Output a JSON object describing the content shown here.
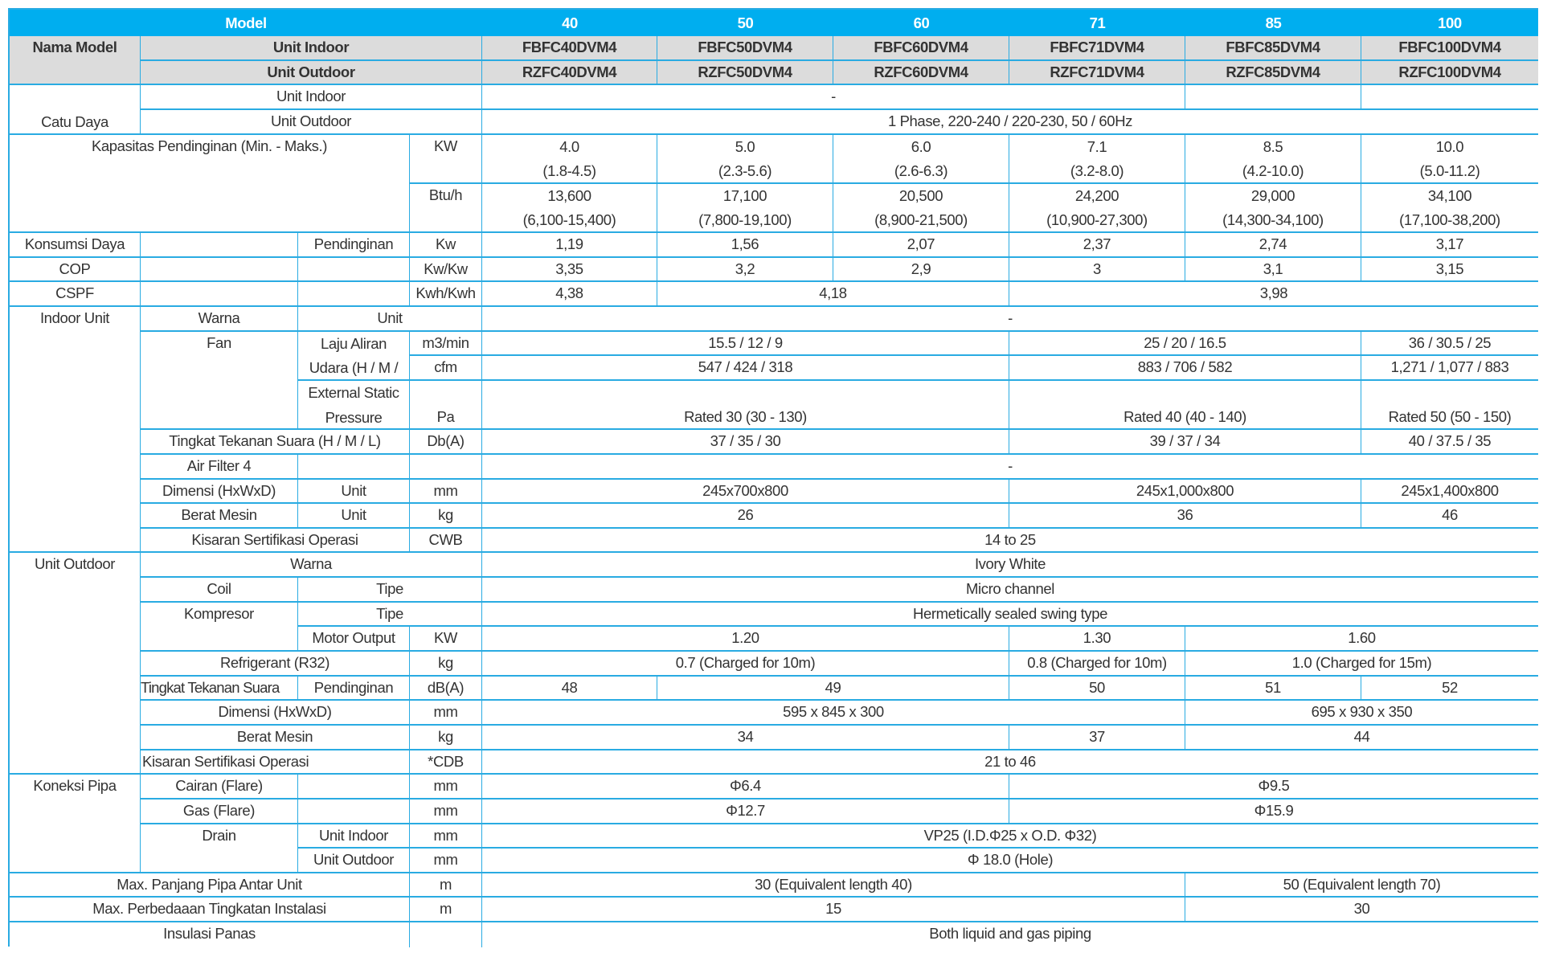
{
  "header": {
    "model_label": "Model",
    "models": [
      "40",
      "50",
      "60",
      "71",
      "85",
      "100"
    ]
  },
  "model_names": {
    "label": "Nama Model",
    "indoor_label": "Unit Indoor",
    "outdoor_label": "Unit Outdoor",
    "indoor": [
      "FBFC40DVM4",
      "FBFC50DVM4",
      "FBFC60DVM4",
      "FBFC71DVM4",
      "FBFC85DVM4",
      "FBFC100DVM4"
    ],
    "outdoor": [
      "RZFC40DVM4",
      "RZFC50DVM4",
      "RZFC60DVM4",
      "RZFC71DVM4",
      "RZFC85DVM4",
      "RZFC100DVM4"
    ]
  },
  "power_supply": {
    "label": "Catu Daya",
    "indoor_label": "Unit Indoor",
    "outdoor_label": "Unit Outdoor",
    "indoor_value_40_71": "-",
    "indoor_value_85": "",
    "indoor_value_100": "",
    "outdoor_value": "1 Phase, 220-240 / 220-230, 50 / 60Hz"
  },
  "cooling_capacity": {
    "label": "Kapasitas Pendinginan (Min. - Maks.)",
    "kw_unit": "KW",
    "btu_unit": "Btu/h",
    "kw": [
      {
        "rated": "4.0",
        "range": "(1.8-4.5)"
      },
      {
        "rated": "5.0",
        "range": "(2.3-5.6)"
      },
      {
        "rated": "6.0",
        "range": "(2.6-6.3)"
      },
      {
        "rated": "7.1",
        "range": "(3.2-8.0)"
      },
      {
        "rated": "8.5",
        "range": "(4.2-10.0)"
      },
      {
        "rated": "10.0",
        "range": "(5.0-11.2)"
      }
    ],
    "btu": [
      {
        "rated": "13,600",
        "range": "(6,100-15,400)"
      },
      {
        "rated": "17,100",
        "range": "(7,800-19,100)"
      },
      {
        "rated": "20,500",
        "range": "(8,900-21,500)"
      },
      {
        "rated": "24,200",
        "range": "(10,900-27,300)"
      },
      {
        "rated": "29,000",
        "range": "(14,300-34,100)"
      },
      {
        "rated": "34,100",
        "range": "(17,100-38,200)"
      }
    ]
  },
  "power_consumption": {
    "label": "Konsumsi Daya",
    "sub_label": "Pendinginan",
    "unit": "Kw",
    "values": [
      "1,19",
      "1,56",
      "2,07",
      "2,37",
      "2,74",
      "3,17"
    ]
  },
  "cop": {
    "label": "COP",
    "unit": "Kw/Kw",
    "values": [
      "3,35",
      "3,2",
      "2,9",
      "3",
      "3,1",
      "3,15"
    ]
  },
  "cspf": {
    "label": "CSPF",
    "unit": "Kwh/Kwh",
    "value_40": "4,38",
    "value_50_60": "4,18",
    "value_71_100": "3,98"
  },
  "indoor_unit": {
    "label": "Indoor Unit",
    "color": {
      "label": "Warna",
      "unit_label": "Unit",
      "value": "-"
    },
    "fan": {
      "label": "Fan",
      "airflow_label_1": "Laju Aliran",
      "airflow_label_2": "Udara (H / M /",
      "unit_m3": "m3/min",
      "unit_cfm": "cfm",
      "m3": {
        "g1": "15.5 / 12 / 9",
        "g2": "25 / 20 / 16.5",
        "g3": "36 / 30.5 / 25"
      },
      "cfm": {
        "g1": "547 / 424 / 318",
        "g2": "883 / 706 / 582",
        "g3": "1,271 / 1,077 / 883"
      },
      "esp_label_1": "External Static",
      "esp_label_2": "Pressure",
      "esp_unit": "Pa",
      "esp": {
        "g1": "Rated 30 (30 - 130)",
        "g2": "Rated 40 (40 - 140)",
        "g3": "Rated 50 (50 - 150)"
      }
    },
    "sound": {
      "label": "Tingkat Tekanan Suara (H / M / L)",
      "unit": "Db(A)",
      "g1": "37 / 35 / 30",
      "g2": "39 / 37 / 34",
      "g3": "40 / 37.5 / 35"
    },
    "air_filter": {
      "label": "Air Filter 4",
      "value": "-"
    },
    "dimension": {
      "label": "Dimensi (HxWxD)",
      "sub_label": "Unit",
      "unit": "mm",
      "g1": "245x700x800",
      "g2": "245x1,000x800",
      "g3": "245x1,400x800"
    },
    "weight": {
      "label": "Berat Mesin",
      "sub_label": "Unit",
      "unit": "kg",
      "g1": "26",
      "g2": "36",
      "g3": "46"
    },
    "operation_range": {
      "label": "Kisaran Sertifikasi Operasi",
      "unit": "CWB",
      "value": "14 to 25"
    }
  },
  "outdoor_unit": {
    "label": "Unit Outdoor",
    "color": {
      "label": "Warna",
      "value": "Ivory White"
    },
    "coil": {
      "label": "Coil",
      "sub_label": "Tipe",
      "value": "Micro channel"
    },
    "compressor": {
      "label": "Kompresor",
      "type_label": "Tipe",
      "type_value": "Hermetically sealed swing type",
      "motor_label": "Motor Output",
      "motor_unit": "KW",
      "motor_40_60": "1.20",
      "motor_71": "1.30",
      "motor_85_100": "1.60"
    },
    "refrigerant": {
      "label": "Refrigerant (R32)",
      "unit": "kg",
      "v_40_60": "0.7 (Charged for 10m)",
      "v_71": "0.8 (Charged for 10m)",
      "v_85_100": "1.0 (Charged for 15m)"
    },
    "sound": {
      "label": "Tingkat Tekanan Suara",
      "sub_label": "Pendinginan",
      "unit": "dB(A)",
      "v_40": "48",
      "v_50_60": "49",
      "v_71": "50",
      "v_85": "51",
      "v_100": "52"
    },
    "dimension": {
      "label": "Dimensi (HxWxD)",
      "unit": "mm",
      "v_40_71": "595 x 845 x 300",
      "v_85_100": "695 x 930 x 350"
    },
    "weight": {
      "label": "Berat Mesin",
      "unit": "kg",
      "v_40_60": "34",
      "v_71": "37",
      "v_85_100": "44"
    },
    "operation_range": {
      "label": "Kisaran Sertifikasi Operasi",
      "unit": "*CDB",
      "value": "21 to 46"
    }
  },
  "piping": {
    "label": "Koneksi Pipa",
    "liquid": {
      "label": "Cairan (Flare)",
      "unit": "mm",
      "v_40_60": "Φ6.4",
      "v_71_100": "Φ9.5"
    },
    "gas": {
      "label": "Gas (Flare)",
      "unit": "mm",
      "v_40_60": "Φ12.7",
      "v_71_100": "Φ15.9"
    },
    "drain": {
      "label": "Drain",
      "indoor_label": "Unit Indoor",
      "outdoor_label": "Unit Outdoor",
      "unit": "mm",
      "indoor_value": "VP25 (I.D.Φ25 x O.D. Φ32)",
      "outdoor_value": "Φ 18.0 (Hole)"
    }
  },
  "max_pipe_length": {
    "label": "Max. Panjang Pipa Antar Unit",
    "unit": "m",
    "v_40_71": "30 (Equivalent length 40)",
    "v_85_100": "50 (Equivalent length 70)"
  },
  "max_height_diff": {
    "label": "Max. Perbedaaan Tingkatan Instalasi",
    "unit": "m",
    "v_40_71": "15",
    "v_85_100": "30"
  },
  "insulation": {
    "label": "Insulasi Panas",
    "unit": "",
    "value": "Both liquid and gas piping"
  },
  "colors": {
    "header_bg": "#00aeef",
    "label_bg": "#dcdcdc",
    "border": "#29abe2",
    "text": "#333333"
  }
}
